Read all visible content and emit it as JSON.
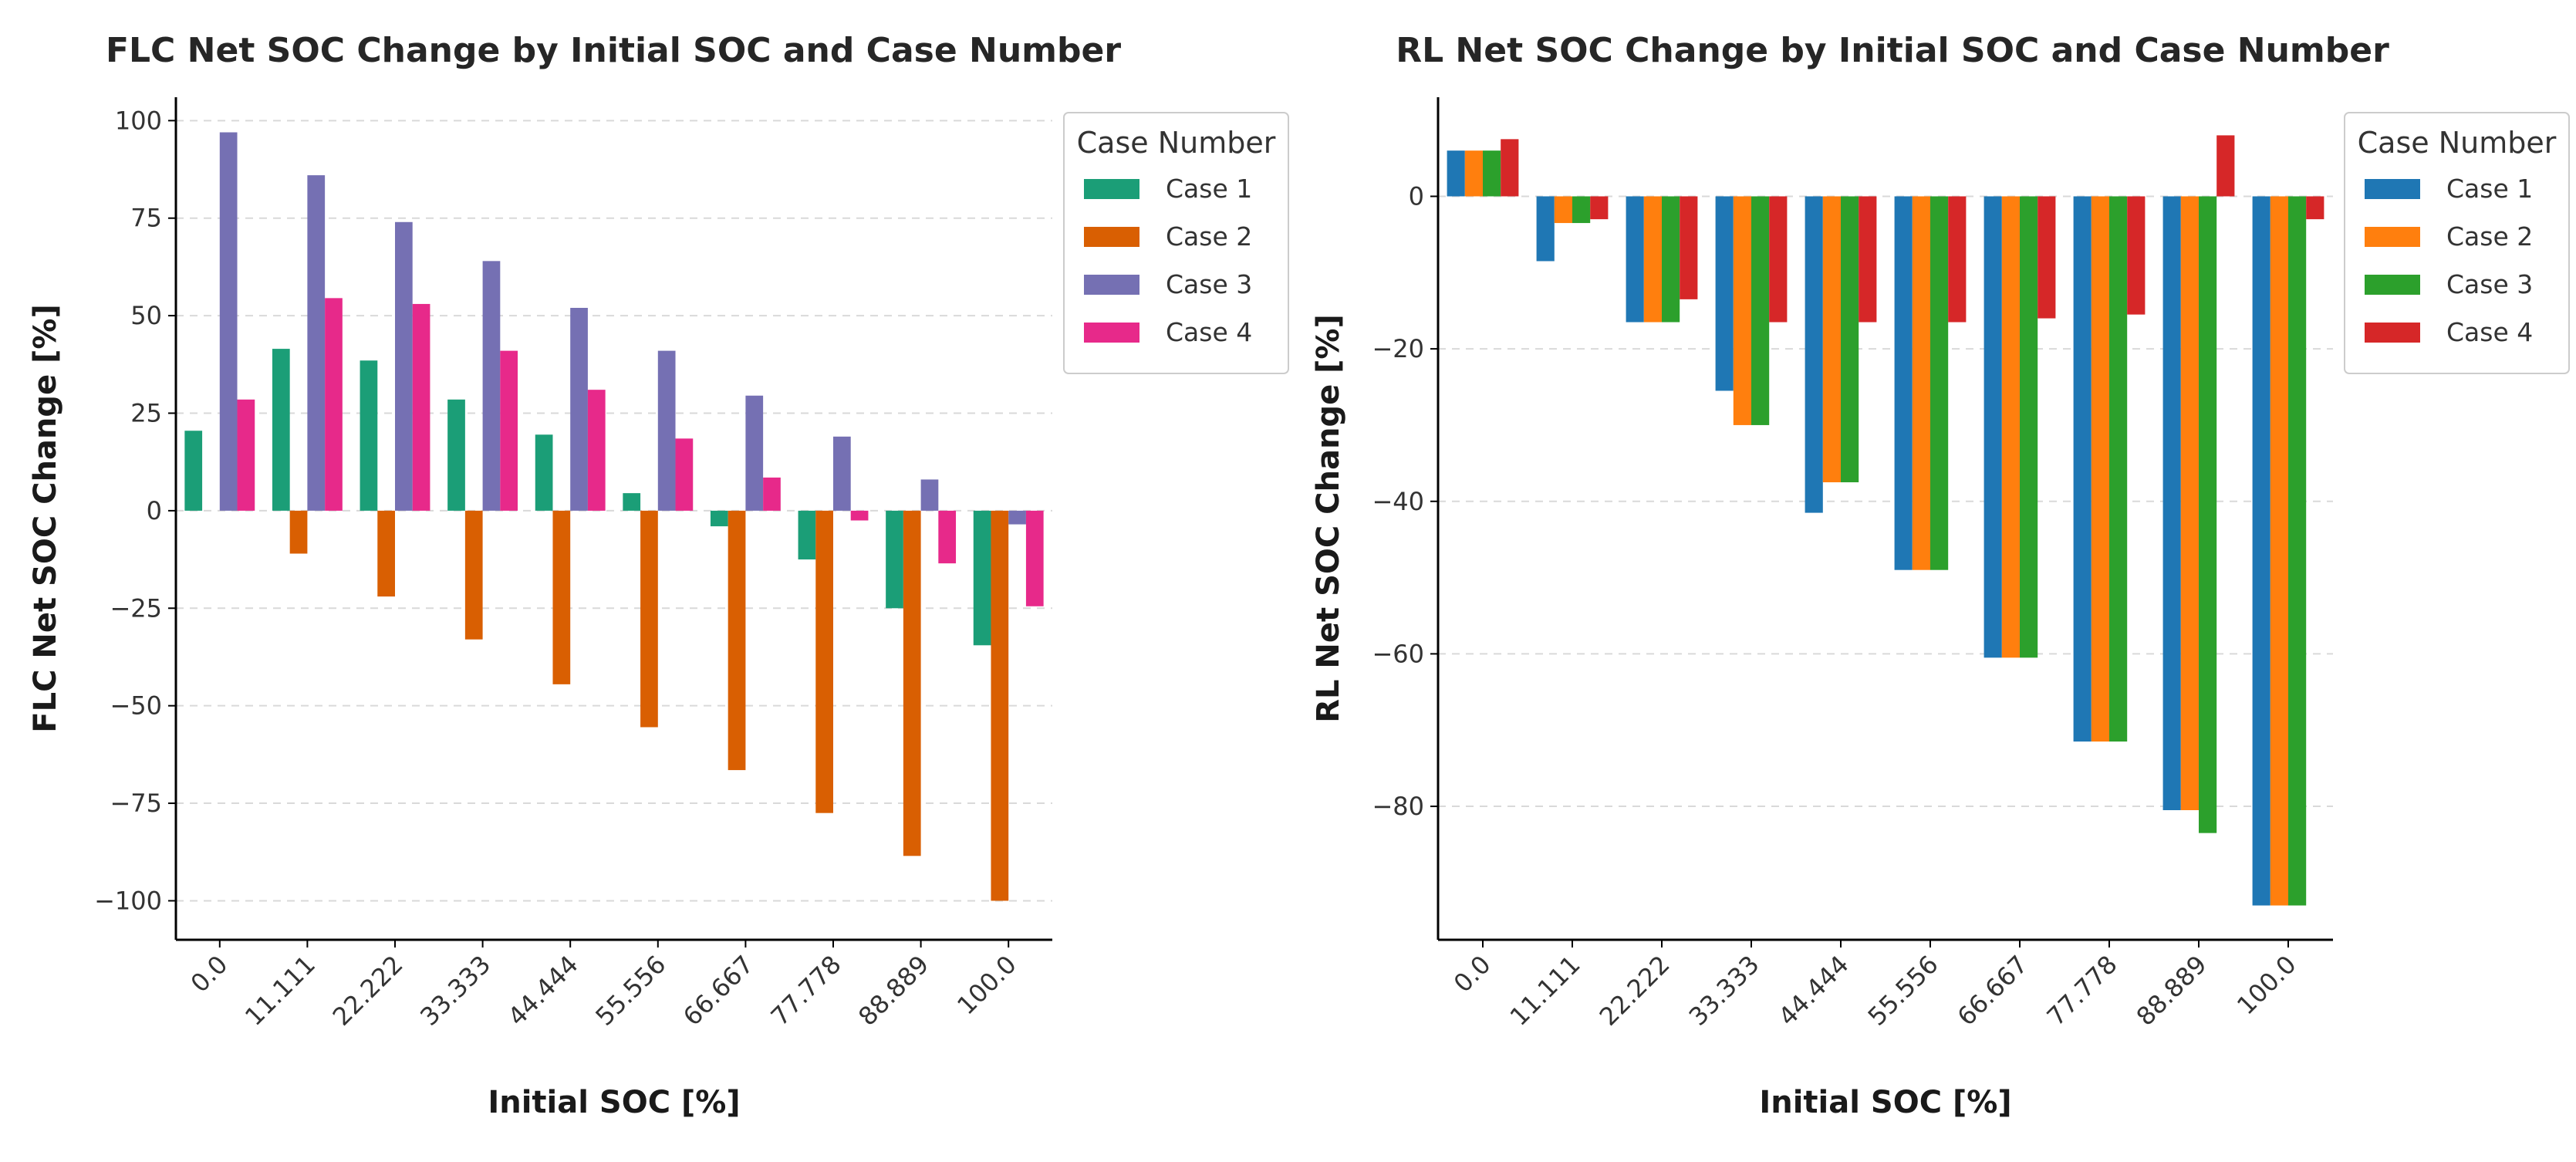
{
  "chart_data": [
    {
      "type": "bar",
      "title": "FLC Net SOC Change by Initial SOC and Case Number",
      "xlabel": "Initial SOC [%]",
      "ylabel": "FLC Net SOC Change [%]",
      "categories": [
        "0.0",
        "11.111",
        "22.222",
        "33.333",
        "44.444",
        "55.556",
        "66.667",
        "77.778",
        "88.889",
        "100.0"
      ],
      "ylim": [
        -110,
        106
      ],
      "yticks": [
        100,
        75,
        50,
        25,
        0,
        -25,
        -50,
        -75,
        -100
      ],
      "grid": "horizontal dashed",
      "legend_title": "Case Number",
      "legend_position": "upper right outside",
      "series": [
        {
          "name": "Case 1",
          "color": "#1b9e77",
          "values": [
            20.5,
            41.5,
            38.5,
            28.5,
            19.5,
            4.5,
            -4,
            -12.5,
            -25,
            -34.5
          ]
        },
        {
          "name": "Case 2",
          "color": "#d95f02",
          "values": [
            0,
            -11,
            -22,
            -33,
            -44.5,
            -55.5,
            -66.5,
            -77.5,
            -88.5,
            -100
          ]
        },
        {
          "name": "Case 3",
          "color": "#7570b3",
          "values": [
            97,
            86,
            74,
            64,
            52,
            41,
            29.5,
            19,
            8,
            -3.5
          ]
        },
        {
          "name": "Case 4",
          "color": "#e7298a",
          "values": [
            28.5,
            54.5,
            53,
            41,
            31,
            18.5,
            8.5,
            -2.5,
            -13.5,
            -24.5
          ]
        }
      ]
    },
    {
      "type": "bar",
      "title": "RL Net SOC Change by Initial SOC and Case Number",
      "xlabel": "Initial SOC [%]",
      "ylabel": "RL Net SOC Change [%]",
      "categories": [
        "0.0",
        "11.111",
        "22.222",
        "33.333",
        "44.444",
        "55.556",
        "66.667",
        "77.778",
        "88.889",
        "100.0"
      ],
      "ylim": [
        -97.5,
        13
      ],
      "yticks": [
        0,
        -20,
        -40,
        -60,
        -80
      ],
      "grid": "horizontal dashed",
      "legend_title": "Case Number",
      "legend_position": "upper right outside",
      "series": [
        {
          "name": "Case 1",
          "color": "#1f77b4",
          "values": [
            6,
            -8.5,
            -16.5,
            -25.5,
            -41.5,
            -49,
            -60.5,
            -71.5,
            -80.5,
            -93
          ]
        },
        {
          "name": "Case 2",
          "color": "#ff7f0e",
          "values": [
            6,
            -3.5,
            -16.5,
            -30,
            -37.5,
            -49,
            -60.5,
            -71.5,
            -80.5,
            -93
          ]
        },
        {
          "name": "Case 3",
          "color": "#2ca02c",
          "values": [
            6,
            -3.5,
            -16.5,
            -30,
            -37.5,
            -49,
            -60.5,
            -71.5,
            -83.5,
            -93
          ]
        },
        {
          "name": "Case 4",
          "color": "#d62728",
          "values": [
            7.5,
            -3,
            -13.5,
            -16.5,
            -16.5,
            -16.5,
            -16,
            -15.5,
            8,
            -3
          ]
        }
      ]
    }
  ]
}
